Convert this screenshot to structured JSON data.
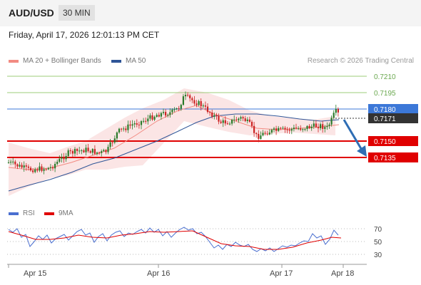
{
  "header": {
    "pair": "AUD/USD",
    "timeframe": "30 MIN"
  },
  "timestamp": "Friday, April 17, 2026 12:01:13 PM CET",
  "legend": {
    "ma20": {
      "label": "MA 20 + Bollinger Bands",
      "color": "#f28b82"
    },
    "ma50": {
      "label": "MA 50",
      "color": "#2f5597"
    }
  },
  "credit": "Research © 2026 Trading Central",
  "levels": {
    "r2": "0.7210",
    "r1": "0.7195",
    "pivot": "0.7180",
    "last": "0.7171",
    "s1": "0.7150",
    "s2": "0.7135"
  },
  "rsi_legend": {
    "rsi": "RSI",
    "ma": "9MA"
  },
  "rsi_ticks": [
    "70",
    "50",
    "30"
  ],
  "x_labels": [
    "Apr 15",
    "Apr 16",
    "Apr 17",
    "Apr 18"
  ],
  "colors": {
    "resistance": "#6aa84f",
    "pivot": "#3c78d8",
    "support": "#e00000",
    "last_box": "#333333",
    "up": "#2a7a2a",
    "down": "#cc2222",
    "rsi": "#4a6fd0",
    "rsi_ma": "#e00000",
    "band": "#fadcdc",
    "arrow": "#2e6db4"
  }
}
